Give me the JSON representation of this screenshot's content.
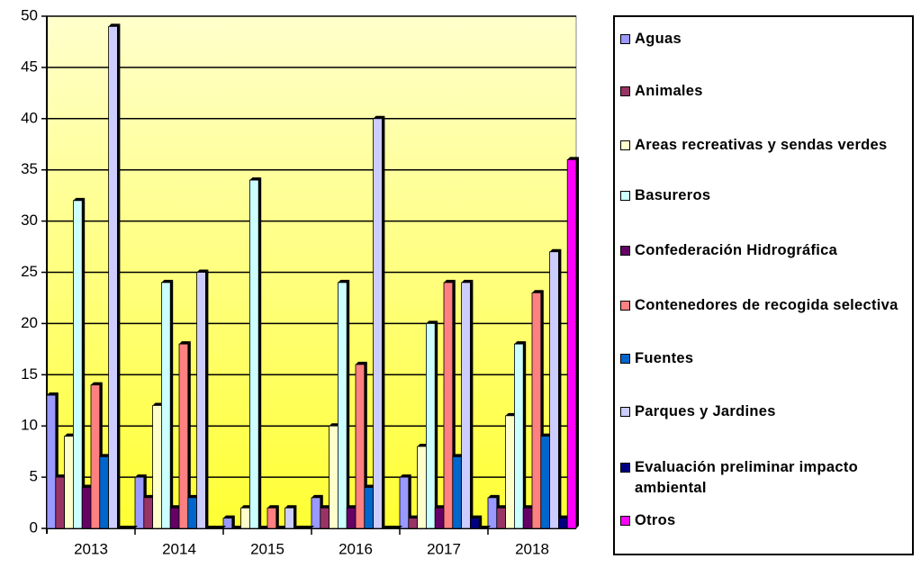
{
  "chart_data": {
    "type": "bar",
    "categories": [
      "2013",
      "2014",
      "2015",
      "2016",
      "2017",
      "2018"
    ],
    "series": [
      {
        "name": "Aguas",
        "color": "#9999ff",
        "values": [
          13,
          5,
          1,
          3,
          5,
          3
        ]
      },
      {
        "name": "Animales",
        "color": "#993366",
        "values": [
          5,
          3,
          0,
          2,
          1,
          2
        ]
      },
      {
        "name": "Areas recreativas y sendas verdes",
        "color": "#ffffcc",
        "values": [
          9,
          12,
          2,
          10,
          8,
          11
        ]
      },
      {
        "name": "Basureros",
        "color": "#ccffff",
        "values": [
          32,
          24,
          34,
          24,
          20,
          18
        ]
      },
      {
        "name": "Confederación Hidrográfica",
        "color": "#660066",
        "values": [
          4,
          2,
          0,
          2,
          2,
          2
        ]
      },
      {
        "name": "Contenedores de recogida selectiva",
        "color": "#ff8080",
        "values": [
          14,
          18,
          2,
          16,
          24,
          23
        ]
      },
      {
        "name": "Fuentes",
        "color": "#0066cc",
        "values": [
          7,
          3,
          0,
          4,
          7,
          9
        ]
      },
      {
        "name": "Parques y Jardines",
        "color": "#ccccff",
        "values": [
          49,
          25,
          2,
          40,
          24,
          27
        ]
      },
      {
        "name": "Evaluación preliminar impacto ambiental",
        "color": "#000080",
        "values": [
          0,
          0,
          0,
          0,
          1,
          1
        ]
      },
      {
        "name": "Otros",
        "color": "#ff00ff",
        "values": [
          0,
          0,
          0,
          0,
          0,
          36
        ]
      }
    ],
    "ylim": [
      0,
      50
    ],
    "yticks": [
      0,
      5,
      10,
      15,
      20,
      25,
      30,
      35,
      40,
      45,
      50
    ],
    "grid": true,
    "legend": "right"
  }
}
